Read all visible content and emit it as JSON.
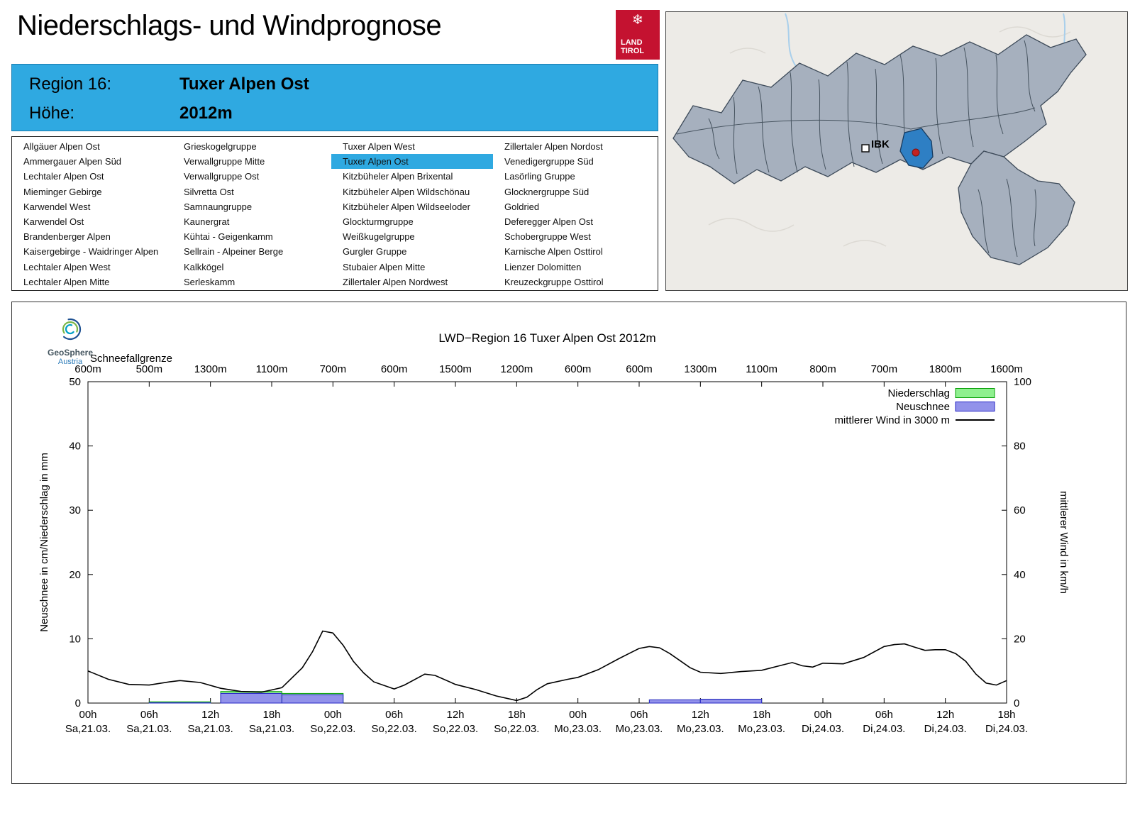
{
  "header": {
    "title": "Niederschlags- und Windprognose",
    "logo": {
      "line1": "LAND",
      "line2": "TIROL",
      "color": "#c41230"
    }
  },
  "region_info": {
    "region_label": "Region 16:",
    "region_name": "Tuxer Alpen Ost",
    "altitude_label": "Höhe:",
    "altitude_value": "2012m",
    "accent_color": "#2fa9e1"
  },
  "region_list": {
    "selected": "Tuxer Alpen Ost",
    "columns": [
      [
        "Allgäuer Alpen Ost",
        "Ammergauer Alpen Süd",
        "Lechtaler Alpen Ost",
        "Mieminger Gebirge",
        "Karwendel West",
        "Karwendel Ost",
        "Brandenberger Alpen",
        "Kaisergebirge - Waidringer Alpen",
        "Lechtaler Alpen West",
        "Lechtaler Alpen Mitte"
      ],
      [
        "Grieskogelgruppe",
        "Verwallgruppe Mitte",
        "Verwallgruppe Ost",
        "Silvretta Ost",
        "Samnaungruppe",
        "Kaunergrat",
        "Kühtai - Geigenkamm",
        "Sellrain - Alpeiner Berge",
        "Kalkkögel",
        "Serleskamm"
      ],
      [
        "Tuxer Alpen West",
        "Tuxer Alpen Ost",
        "Kitzbüheler Alpen Brixental",
        "Kitzbüheler Alpen Wildschönau",
        "Kitzbüheler Alpen Wildseeloder",
        "Glockturmgruppe",
        "Weißkugelgruppe",
        "Gurgler Gruppe",
        "Stubaier Alpen Mitte",
        "Zillertaler Alpen Nordwest"
      ],
      [
        "Zillertaler Alpen Nordost",
        "Venedigergruppe Süd",
        "Lasörling Gruppe",
        "Glocknergruppe Süd",
        "Goldried",
        "Deferegger Alpen Ost",
        "Schobergruppe West",
        "Karnische Alpen Osttirol",
        "Lienzer Dolomitten",
        "Kreuzeckgruppe Osttirol"
      ]
    ]
  },
  "map": {
    "marker_label": "IBK",
    "region_fill": "#a6b0be",
    "highlight_color": "#2e7fc4",
    "station_dot_color": "#c32222"
  },
  "geosphere": {
    "name": "GeoSphere",
    "sub": "Austria"
  },
  "chart_data": {
    "type": "bar",
    "title": "LWD−Region 16 Tuxer Alpen Ost 2012m",
    "top_axis": {
      "label": "Schneefallgrenze",
      "values": [
        "600m",
        "500m",
        "1300m",
        "1100m",
        "700m",
        "600m",
        "1500m",
        "1200m",
        "600m",
        "600m",
        "1300m",
        "1100m",
        "800m",
        "700m",
        "1800m",
        "1600m"
      ]
    },
    "x_axis": {
      "hours_total": 90,
      "tick_step_h": 6,
      "ticks": [
        {
          "time": "00h",
          "date": "Sa,21.03."
        },
        {
          "time": "06h",
          "date": "Sa,21.03."
        },
        {
          "time": "12h",
          "date": "Sa,21.03."
        },
        {
          "time": "18h",
          "date": "Sa,21.03."
        },
        {
          "time": "00h",
          "date": "So,22.03."
        },
        {
          "time": "06h",
          "date": "So,22.03."
        },
        {
          "time": "12h",
          "date": "So,22.03."
        },
        {
          "time": "18h",
          "date": "So,22.03."
        },
        {
          "time": "00h",
          "date": "Mo,23.03."
        },
        {
          "time": "06h",
          "date": "Mo,23.03."
        },
        {
          "time": "12h",
          "date": "Mo,23.03."
        },
        {
          "time": "18h",
          "date": "Mo,23.03."
        },
        {
          "time": "00h",
          "date": "Di,24.03."
        },
        {
          "time": "06h",
          "date": "Di,24.03."
        },
        {
          "time": "12h",
          "date": "Di,24.03."
        },
        {
          "time": "18h",
          "date": "Di,24.03."
        }
      ]
    },
    "y_left": {
      "label": "Neuschnee in cm/Niederschlag in mm",
      "min": 0,
      "max": 50,
      "ticks": [
        0,
        10,
        20,
        30,
        40,
        50
      ]
    },
    "y_right": {
      "label": "mittlerer Wind in km/h",
      "min": 0,
      "max": 100,
      "ticks": [
        0,
        20,
        40,
        60,
        80,
        100
      ]
    },
    "series": [
      {
        "name": "Niederschlag",
        "type": "bar",
        "unit": "mm",
        "fill": "#8ff08f",
        "stroke": "#0aa00a"
      },
      {
        "name": "Neuschnee",
        "type": "bar",
        "unit": "cm",
        "fill": "#9292ea",
        "stroke": "#2424c4"
      },
      {
        "name": "mittlerer Wind in 3000 m",
        "type": "line",
        "stroke": "#000000"
      }
    ],
    "bar_segments": [
      {
        "from_h": 6,
        "to_h": 12,
        "niederschlag": 0.2,
        "neuschnee": 0.05
      },
      {
        "from_h": 13,
        "to_h": 19,
        "niederschlag": 1.8,
        "neuschnee": 1.5
      },
      {
        "from_h": 19,
        "to_h": 25,
        "niederschlag": 1.5,
        "neuschnee": 1.3
      },
      {
        "from_h": 55,
        "to_h": 60,
        "niederschlag": 0.5,
        "neuschnee": 0.5
      },
      {
        "from_h": 60,
        "to_h": 66,
        "niederschlag": 0.6,
        "neuschnee": 0.6
      }
    ],
    "wind_points_kmh": [
      [
        0,
        10
      ],
      [
        2,
        7.4
      ],
      [
        4,
        5.8
      ],
      [
        6,
        5.6
      ],
      [
        8,
        6.6
      ],
      [
        9,
        7
      ],
      [
        11,
        6.4
      ],
      [
        13,
        4.6
      ],
      [
        15,
        3.6
      ],
      [
        17,
        3.4
      ],
      [
        19,
        4.8
      ],
      [
        21,
        11
      ],
      [
        22,
        16
      ],
      [
        23,
        22.4
      ],
      [
        24,
        21.8
      ],
      [
        25,
        18
      ],
      [
        26,
        13
      ],
      [
        27,
        9.4
      ],
      [
        28,
        6.6
      ],
      [
        30,
        4.4
      ],
      [
        31,
        5.6
      ],
      [
        33,
        9
      ],
      [
        34,
        8.6
      ],
      [
        36,
        5.8
      ],
      [
        38,
        4.2
      ],
      [
        40,
        2.2
      ],
      [
        42,
        0.8
      ],
      [
        43,
        1.8
      ],
      [
        44,
        4.2
      ],
      [
        45,
        6
      ],
      [
        47,
        7.4
      ],
      [
        48,
        8
      ],
      [
        50,
        10.4
      ],
      [
        52,
        13.8
      ],
      [
        54,
        17
      ],
      [
        55,
        17.6
      ],
      [
        56,
        17.2
      ],
      [
        57,
        15.4
      ],
      [
        58,
        13.2
      ],
      [
        59,
        11
      ],
      [
        60,
        9.6
      ],
      [
        62,
        9.2
      ],
      [
        64,
        9.8
      ],
      [
        66,
        10.2
      ],
      [
        68,
        11.8
      ],
      [
        69,
        12.6
      ],
      [
        70,
        11.6
      ],
      [
        71,
        11.2
      ],
      [
        72,
        12.4
      ],
      [
        74,
        12.2
      ],
      [
        76,
        14.2
      ],
      [
        78,
        17.6
      ],
      [
        79,
        18.2
      ],
      [
        80,
        18.4
      ],
      [
        81,
        17.4
      ],
      [
        82,
        16.4
      ],
      [
        83,
        16.6
      ],
      [
        84,
        16.6
      ],
      [
        85,
        15.4
      ],
      [
        86,
        13
      ],
      [
        87,
        9
      ],
      [
        88,
        6.2
      ],
      [
        89,
        5.6
      ],
      [
        90,
        7
      ]
    ],
    "legend_position": "top-right",
    "grid": false
  }
}
